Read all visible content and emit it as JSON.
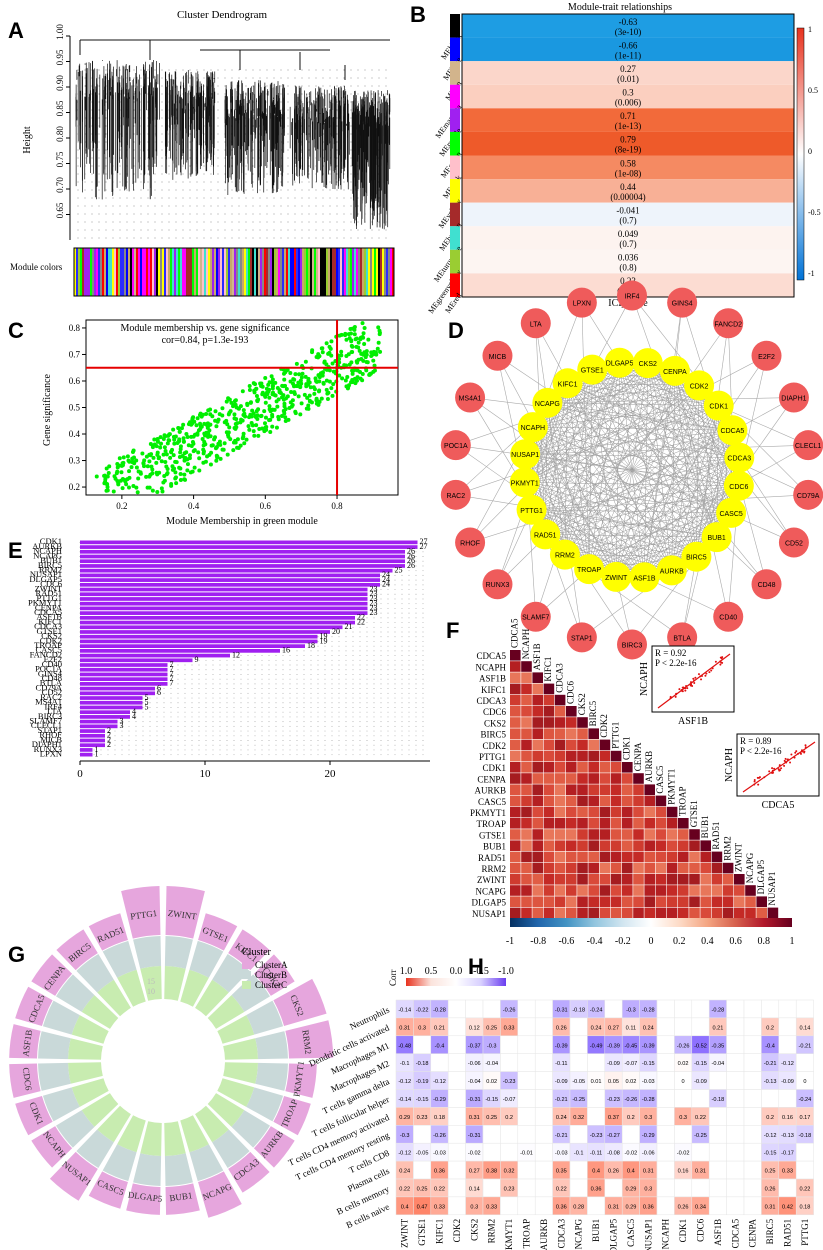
{
  "panel_labels": [
    "A",
    "B",
    "C",
    "D",
    "E",
    "F",
    "G",
    "H"
  ],
  "chart_data": [
    {
      "panel": "A",
      "type": "dendrogram",
      "title": "Cluster Dendrogram",
      "ylabel": "Height",
      "ylim": [
        0.6,
        1.0
      ],
      "yticks": [
        "1.00",
        "0.95",
        "0.90",
        "0.85",
        "0.80",
        "0.75",
        "0.70",
        "0.65"
      ],
      "row_label": "Module colors",
      "module_color_bands": [
        "#888888",
        "#2b2bff",
        "#0000ff",
        "#000000",
        "#c7a96a",
        "#ff00ff",
        "#00ff00",
        "#ffc0cb",
        "#ffff00",
        "#a52a2a",
        "#40e0d0",
        "#9acd32",
        "#ff0000",
        "#d2b48c",
        "#a020f0"
      ]
    },
    {
      "panel": "B",
      "type": "heatmap",
      "title": "Module-trait relationships",
      "xlabel": "ICI_score",
      "rows": [
        {
          "module": "MEblack",
          "color": "#000000",
          "r": "-0.63",
          "p": "(3e-10)",
          "fill": "#1e9de3"
        },
        {
          "module": "MEblue",
          "color": "#0000ff",
          "r": "-0.66",
          "p": "(1e-11)",
          "fill": "#1a98e0"
        },
        {
          "module": "MEtan",
          "color": "#d2b48c",
          "r": "0.27",
          "p": "(0.01)",
          "fill": "#fbd6ca"
        },
        {
          "module": "MEmagenta",
          "color": "#ff00ff",
          "r": "0.3",
          "p": "(0.006)",
          "fill": "#fbcfbf"
        },
        {
          "module": "MEpurple",
          "color": "#a020f0",
          "r": "0.71",
          "p": "(1e-13)",
          "fill": "#f26a3a"
        },
        {
          "module": "MEgreen",
          "color": "#00ff00",
          "r": "0.79",
          "p": "(8e-19)",
          "fill": "#ee5a2a"
        },
        {
          "module": "MEpink",
          "color": "#ffc0cb",
          "r": "0.58",
          "p": "(1e-08)",
          "fill": "#f58a62"
        },
        {
          "module": "MEyellow",
          "color": "#ffff00",
          "r": "0.44",
          "p": "(0.00004)",
          "fill": "#f8b096"
        },
        {
          "module": "MEbrown",
          "color": "#a52a2a",
          "r": "-0.041",
          "p": "(0.7)",
          "fill": "#eef4fb"
        },
        {
          "module": "MEturquoise",
          "color": "#40e0d0",
          "r": "0.049",
          "p": "(0.7)",
          "fill": "#fdf3ef"
        },
        {
          "module": "MEgreenyellow",
          "color": "#9acd32",
          "r": "0.036",
          "p": "(0.8)",
          "fill": "#fdf5f2"
        },
        {
          "module": "MEred",
          "color": "#ff0000",
          "r": "0.23",
          "p": "(0.04)",
          "fill": "#fcdcd2"
        }
      ],
      "legend_ticks": [
        "1",
        "0.5",
        "0",
        "-0.5",
        "-1"
      ],
      "colormap": [
        "#0072d6",
        "#ffffff",
        "#e8321e"
      ]
    },
    {
      "panel": "C",
      "type": "scatter",
      "title": "Module membership vs. gene significance",
      "subtitle": "cor=0.84, p=1.3e-193",
      "xlabel": "Module Membership in green module",
      "ylabel": "Gene significance",
      "xlim": [
        0.1,
        0.97
      ],
      "ylim": [
        0.17,
        0.83
      ],
      "xticks": [
        0.2,
        0.4,
        0.6,
        0.8
      ],
      "yticks": [
        0.2,
        0.3,
        0.4,
        0.5,
        0.6,
        0.7,
        0.8
      ],
      "threshold_x": 0.8,
      "threshold_y": 0.65,
      "point_color": "#00ee00",
      "line_color": "#e60000",
      "series": [
        {
          "x": [
            0.13,
            0.16,
            0.19,
            0.2,
            0.22,
            0.24,
            0.26,
            0.28,
            0.3,
            0.32,
            0.34,
            0.36,
            0.38,
            0.4,
            0.42,
            0.44,
            0.46,
            0.48,
            0.5,
            0.52,
            0.54,
            0.56,
            0.58,
            0.6,
            0.62,
            0.64,
            0.66,
            0.68,
            0.7,
            0.72,
            0.74,
            0.76,
            0.78,
            0.8,
            0.82,
            0.84,
            0.86,
            0.88,
            0.9,
            0.92
          ],
          "y": [
            0.24,
            0.2,
            0.21,
            0.28,
            0.26,
            0.3,
            0.29,
            0.32,
            0.33,
            0.35,
            0.34,
            0.38,
            0.4,
            0.39,
            0.43,
            0.44,
            0.45,
            0.47,
            0.48,
            0.5,
            0.49,
            0.52,
            0.53,
            0.54,
            0.55,
            0.56,
            0.57,
            0.58,
            0.59,
            0.6,
            0.61,
            0.62,
            0.64,
            0.65,
            0.66,
            0.67,
            0.68,
            0.69,
            0.7,
            0.71
          ]
        }
      ]
    },
    {
      "panel": "D",
      "type": "network",
      "hub_genes": [
        "GTSE1",
        "DLGAP5",
        "CKS2",
        "CENPA",
        "CDK2",
        "CDK1",
        "CDCA5",
        "CDCA3",
        "CDC6",
        "CASC5",
        "BUB1",
        "BIRC5",
        "AURKB",
        "ASF1B",
        "ZWINT",
        "TROAP",
        "RRM2",
        "RAD51",
        "PTTG1",
        "PKMYT1",
        "NUSAP1",
        "NCAPH",
        "NCAPG",
        "KIFC1"
      ],
      "outer_genes": [
        "IRF4",
        "GINS4",
        "FANCD2",
        "E2F2",
        "DIAPH1",
        "CLECL1",
        "CD79A",
        "CD52",
        "CD48",
        "CD40",
        "BTLA",
        "BIRC3",
        "STAP1",
        "SLAMF7",
        "RUNX3",
        "RHOF",
        "RAC2",
        "POC1A",
        "MS4A1",
        "MICB",
        "LTA",
        "LPXN"
      ],
      "hub_color": "#ffff00",
      "outer_color": "#ef5b5b"
    },
    {
      "panel": "E",
      "type": "bar",
      "orientation": "horizontal",
      "categories": [
        "CDK1",
        "AURKB",
        "NCAPH",
        "NCAPG",
        "BUB1",
        "BIRC5",
        "RRM2",
        "NUSAP1",
        "DLGAP5",
        "CDC6",
        "ZWINT",
        "RAD51",
        "PTTG1",
        "PKMYT1",
        "CENPA",
        "CDCA5",
        "ASF1B",
        "KIFC1",
        "CDCA3",
        "GTSE1",
        "CKS2",
        "CDK2",
        "TROAP",
        "CASC5",
        "FANCD2",
        "E2F2",
        "CD40",
        "POC1A",
        "GINS4",
        "CD48",
        "BTLA",
        "CD79A",
        "CD52",
        "RAC2",
        "MS4A1",
        "IRF4",
        "LTA",
        "BIRC3",
        "SLAMF7",
        "CLECL1",
        "STAP1",
        "RHOF",
        "MICB",
        "DIAPH1",
        "RUNX3",
        "LPXN"
      ],
      "values": [
        27,
        27,
        26,
        26,
        26,
        26,
        25,
        24,
        24,
        24,
        23,
        23,
        23,
        23,
        23,
        23,
        22,
        22,
        21,
        20,
        19,
        19,
        18,
        16,
        12,
        9,
        7,
        7,
        7,
        7,
        7,
        6,
        6,
        5,
        5,
        5,
        4,
        4,
        3,
        3,
        2,
        2,
        2,
        2,
        1,
        1
      ],
      "xticks": [
        0,
        10,
        20
      ],
      "xlim": [
        0,
        28
      ],
      "bar_color": "#a020f0"
    },
    {
      "panel": "F",
      "type": "heatmap",
      "genes": [
        "CDCA5",
        "NCAPH",
        "ASF1B",
        "KIFC1",
        "CDCA3",
        "CDC6",
        "CKS2",
        "BIRC5",
        "CDK2",
        "PTTG1",
        "CDK1",
        "CENPA",
        "AURKB",
        "CASC5",
        "PKMYT1",
        "TROAP",
        "GTSE1",
        "BUB1",
        "RAD51",
        "RRM2",
        "ZWINT",
        "NCAPG",
        "DLGAP5",
        "NUSAP1"
      ],
      "legend_ticks": [
        "-1",
        "-0.8",
        "-0.6",
        "-0.4",
        "-0.2",
        "0",
        "0.2",
        "0.4",
        "0.6",
        "0.8",
        "1"
      ],
      "colormap": [
        "#053061",
        "#2166ac",
        "#4393c3",
        "#92c5de",
        "#d1e5f0",
        "#ffffff",
        "#fddbc7",
        "#f4a582",
        "#d6604d",
        "#b2182b",
        "#67001f"
      ],
      "insets": [
        {
          "r": "R = 0.92",
          "p": "P < 2.2e-16",
          "xlabel": "ASF1B",
          "ylabel": "NCAPH"
        },
        {
          "r": "R = 0.89",
          "p": "P < 2.2e-16",
          "xlabel": "CDCA5",
          "ylabel": "NCAPH"
        }
      ]
    },
    {
      "panel": "G",
      "type": "circular-bar",
      "legend_title": "Cluster",
      "legend_items": [
        {
          "name": "ClusterA",
          "color": "#e6a6dd"
        },
        {
          "name": "ClusterB",
          "color": "#c9d9d9"
        },
        {
          "name": "ClusterC",
          "color": "#c8ecb0"
        }
      ],
      "ring_labels": [
        "15",
        "10"
      ],
      "genes": [
        "ZWINT",
        "GTSE1",
        "KIFC1",
        "CDK2",
        "CKS2",
        "RRM2",
        "PKMYT1",
        "TROAP",
        "AURKB",
        "CDCA3",
        "NCAPG",
        "BUB1",
        "DLGAP5",
        "CASC5",
        "NUSAP1",
        "NCAPH",
        "CDK1",
        "CDC6",
        "ASF1B",
        "CDCA5",
        "CENPA",
        "BIRC5",
        "RAD51",
        "PTTG1"
      ],
      "values": [
        1,
        0.55,
        0.55,
        0.55,
        0.9,
        0.9,
        0.55,
        0.55,
        0.55,
        0.55,
        0.75,
        0.55,
        0.55,
        0.55,
        0.75,
        0.55,
        0.55,
        0.55,
        0.55,
        0.55,
        0.55,
        0.55,
        0.55,
        1
      ]
    },
    {
      "panel": "H",
      "type": "heatmap",
      "legend_title": "Corr",
      "legend_ticks": [
        "1.0",
        "0.5",
        "0.0",
        "-0.5",
        "-1.0"
      ],
      "rows": [
        "Neutrophils",
        "Dendritic cells activated",
        "Macrophages M1",
        "Macrophages M2",
        "T cells gamma delta",
        "T cells follicular helper",
        "T cells CD4 memory activated",
        "T cells CD4 memory resting",
        "T cells CD8",
        "Plasma cells",
        "B cells memory",
        "B cells naive"
      ],
      "cols": [
        "ZWINT",
        "GTSE1",
        "KIFC1",
        "CDK2",
        "CKS2",
        "RRM2",
        "PKMYT1",
        "TROAP",
        "AURKB",
        "CDCA3",
        "NCAPG",
        "BUB1",
        "DLGAP5",
        "CASC5",
        "NUSAP1",
        "NCAPH",
        "CDK1",
        "CDC6",
        "ASF1B",
        "CDCA5",
        "CENPA",
        "BIRC5",
        "RAD51",
        "PTTG1"
      ],
      "values": [
        [
          "-0.14",
          "-0.22",
          "-0.28",
          "",
          "",
          "",
          "-0.26",
          "",
          "",
          "-0.31",
          "-0.18",
          "-0.24",
          "",
          "-0.3",
          "-0.28",
          "",
          "",
          "",
          "-0.28",
          "",
          "",
          "",
          "",
          ""
        ],
        [
          "0.31",
          "0.3",
          "0.21",
          "",
          "0.12",
          "0.25",
          "0.33",
          "",
          "",
          "0.26",
          "",
          "0.24",
          "0.27",
          "0.11",
          "0.24",
          "",
          "",
          "",
          "0.21",
          "",
          "",
          "0.2",
          "",
          "0.14"
        ],
        [
          "-0.48",
          "",
          "-0.4",
          "",
          "-0.37",
          "-0.3",
          "",
          "",
          "",
          "-0.39",
          "",
          "-0.49",
          "-0.39",
          "-0.45",
          "-0.39",
          "",
          "-0.26",
          "-0.52",
          "-0.35",
          "",
          "",
          "-0.4",
          "",
          "-0.21"
        ],
        [
          "-0.1",
          "-0.18",
          "",
          "",
          "-0.06",
          "-0.04",
          "",
          "",
          "",
          "-0.11",
          "",
          "",
          "-0.09",
          "-0.07",
          "-0.15",
          "",
          "0.02",
          "-0.15",
          "-0.04",
          "",
          "",
          "-0.21",
          "-0.12",
          ""
        ],
        [
          "-0.12",
          "-0.19",
          "-0.12",
          "",
          "-0.04",
          "0.02",
          "-0.23",
          "",
          "",
          "-0.09",
          "-0.05",
          "0.01",
          "0.05",
          "0.02",
          "-0.03",
          "",
          "0",
          "-0.09",
          "",
          "",
          "",
          "-0.13",
          "-0.09",
          "0"
        ],
        [
          "-0.14",
          "-0.15",
          "-0.29",
          "",
          "-0.31",
          "-0.15",
          "-0.07",
          "",
          "",
          "-0.21",
          "-0.25",
          "",
          "-0.23",
          "-0.26",
          "-0.28",
          "",
          "",
          "",
          "-0.18",
          "",
          "",
          "",
          "",
          "-0.24"
        ],
        [
          "0.29",
          "0.23",
          "0.18",
          "",
          "0.31",
          "0.25",
          "0.2",
          "",
          "",
          "0.24",
          "0.32",
          "",
          "0.37",
          "0.2",
          "0.3",
          "",
          "0.3",
          "0.22",
          "",
          "",
          "",
          "0.2",
          "0.16",
          "0.17"
        ],
        [
          "-0.3",
          "",
          "-0.26",
          "",
          "-0.31",
          "",
          "",
          "",
          "",
          "-0.21",
          "",
          "-0.23",
          "-0.27",
          "",
          "-0.29",
          "",
          "",
          "-0.25",
          "",
          "",
          "",
          "-0.12",
          "-0.13",
          "-0.18"
        ],
        [
          "-0.12",
          "-0.05",
          "-0.03",
          "",
          "-0.02",
          "",
          "",
          "-0.01",
          "",
          "-0.03",
          "-0.1",
          "-0.11",
          "-0.08",
          "-0.02",
          "-0.06",
          "",
          "-0.02",
          "",
          "",
          "",
          "",
          "-0.15",
          "-0.17",
          ""
        ],
        [
          "0.24",
          "",
          "0.36",
          "",
          "0.27",
          "0.38",
          "0.32",
          "",
          "",
          "0.35",
          "",
          "0.4",
          "0.26",
          "0.4",
          "0.31",
          "",
          "0.16",
          "0.31",
          "",
          "",
          "",
          "0.25",
          "0.33",
          ""
        ],
        [
          "0.22",
          "0.25",
          "0.22",
          "",
          "0.14",
          "",
          "0.23",
          "",
          "",
          "0.22",
          "",
          "0.36",
          "",
          "0.29",
          "0.3",
          "",
          "",
          "",
          "",
          "",
          "",
          "0.26",
          "",
          "0.22"
        ],
        [
          "0.4",
          "0.47",
          "0.33",
          "",
          "0.3",
          "0.33",
          "",
          "",
          "",
          "0.36",
          "0.28",
          "",
          "0.31",
          "0.29",
          "0.36",
          "",
          "0.26",
          "0.34",
          "",
          "",
          "",
          "0.31",
          "0.42",
          "0.18"
        ]
      ]
    }
  ]
}
